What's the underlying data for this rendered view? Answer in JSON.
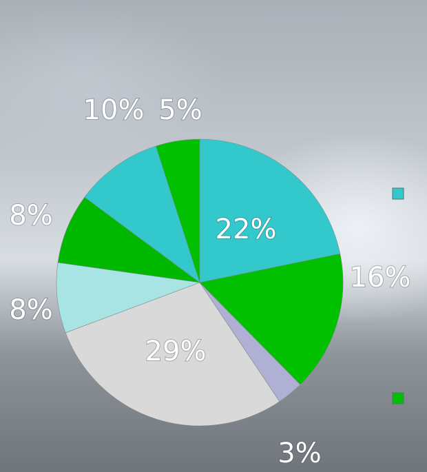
{
  "chart_data": {
    "type": "pie",
    "values": [
      22,
      16,
      3,
      29,
      8,
      8,
      10,
      5
    ],
    "value_labels": [
      "22%",
      "16%",
      "3%",
      "29%",
      "8%",
      "8%",
      "10%",
      "5%"
    ],
    "colors": [
      "#33c9cc",
      "#00c000",
      "#b0b0d4",
      "#d9d9d9",
      "#a8e4e4",
      "#00b800",
      "#33c9cc",
      "#00c000"
    ],
    "legend_colors": [
      "#33c9cc",
      "#00c000"
    ]
  }
}
